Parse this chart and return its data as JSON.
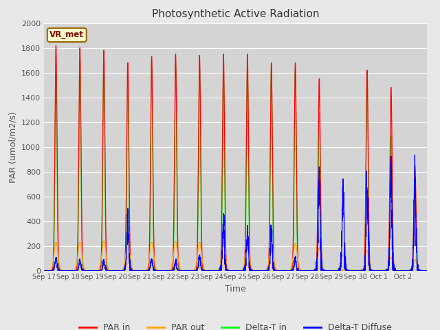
{
  "title": "Photosynthetic Active Radiation",
  "ylabel": "PAR (umol/m2/s)",
  "xlabel": "Time",
  "ylim": [
    0,
    2000
  ],
  "fig_facecolor": "#e8e8e8",
  "ax_facecolor": "#d4d4d4",
  "label_text": "VR_met",
  "x_tick_labels": [
    "Sep 17",
    "Sep 18",
    "Sep 19",
    "Sep 20",
    "Sep 21",
    "Sep 22",
    "Sep 23",
    "Sep 24",
    "Sep 25",
    "Sep 26",
    "Sep 27",
    "Sep 28",
    "Sep 29",
    "Sep 30",
    "Oct 1",
    "Oct 2"
  ],
  "par_in_peaks": [
    1820,
    1800,
    1780,
    1680,
    1730,
    1750,
    1740,
    1750,
    1750,
    1680,
    1680,
    1550,
    0,
    1620,
    1480,
    850
  ],
  "par_out_peaks": [
    230,
    230,
    240,
    230,
    230,
    235,
    230,
    230,
    225,
    220,
    220,
    185,
    0,
    165,
    110,
    90
  ],
  "delta_t_in_peaks": [
    1600,
    1700,
    1680,
    1550,
    1650,
    1660,
    1650,
    1660,
    1660,
    1640,
    1620,
    1280,
    0,
    1600,
    1090,
    760
  ],
  "delta_t_diff_peaks": [
    105,
    80,
    80,
    390,
    90,
    75,
    115,
    420,
    310,
    280,
    100,
    720,
    620,
    700,
    730,
    720
  ],
  "num_days": 16,
  "pts_per_day": 200,
  "sigma_par_in": 0.045,
  "sigma_par_out": 0.08,
  "sigma_delta_t": 0.04,
  "sigma_delta_diff": 0.04
}
